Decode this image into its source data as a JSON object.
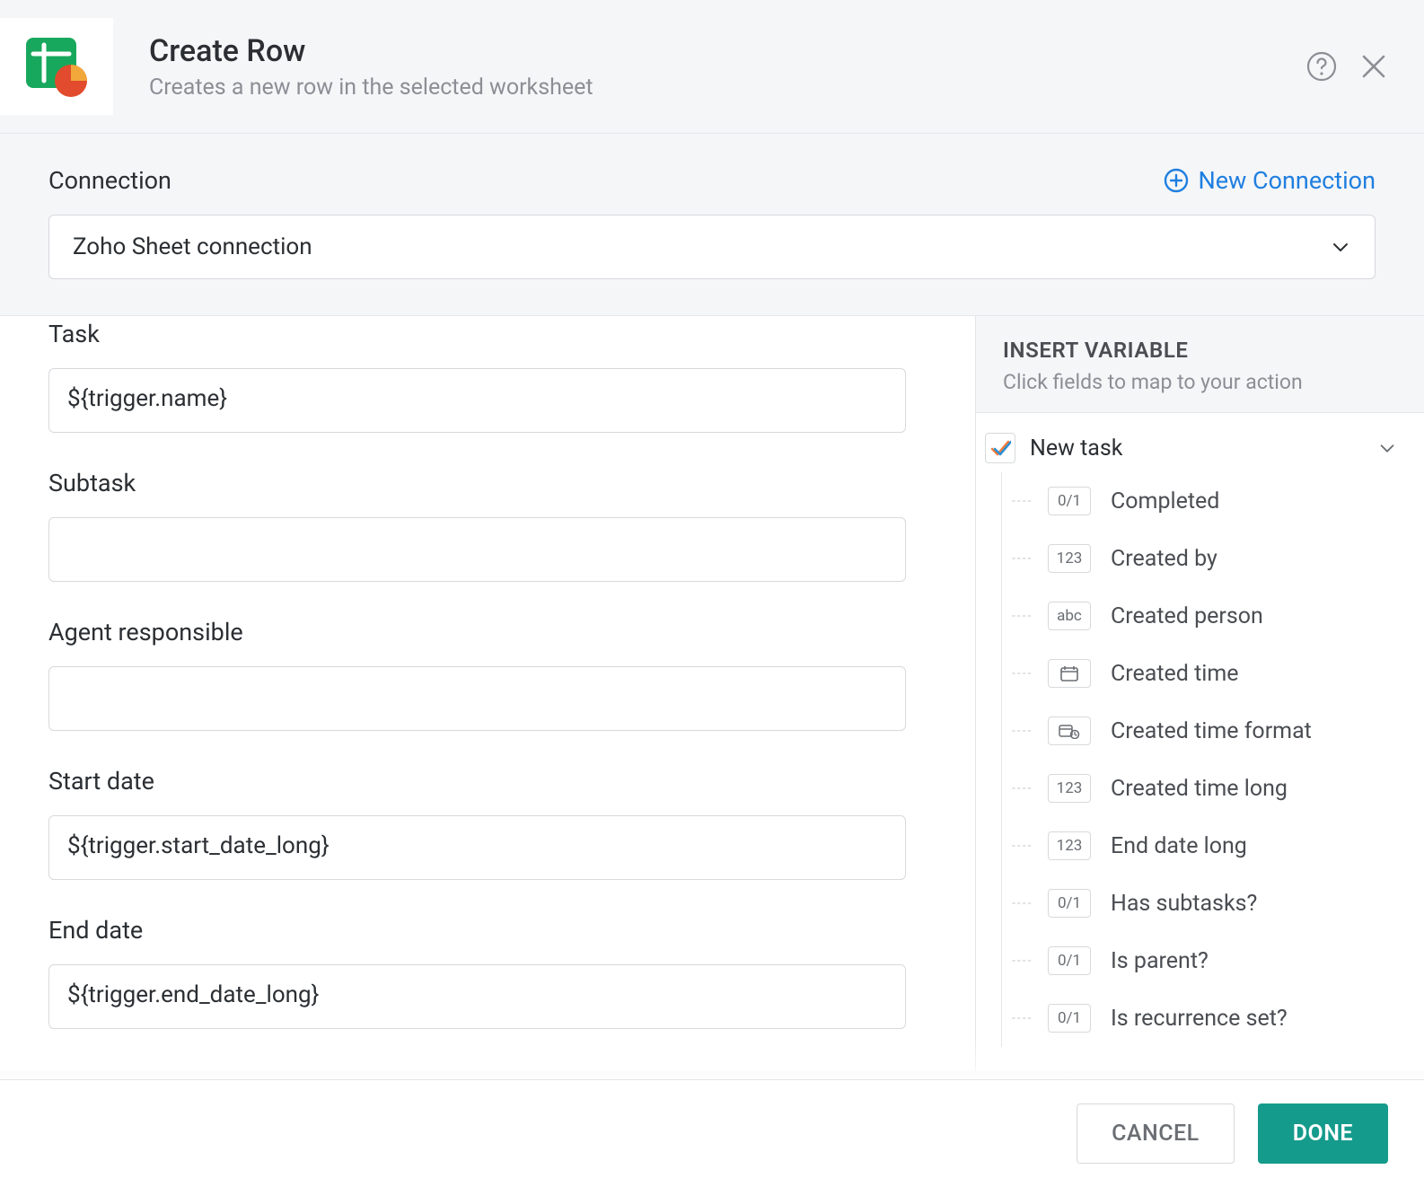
{
  "header": {
    "title": "Create Row",
    "subtitle": "Creates a new row in the selected worksheet"
  },
  "connection": {
    "label": "Connection",
    "new_label": "New Connection",
    "selected": "Zoho Sheet connection"
  },
  "fields": [
    {
      "label": "Task",
      "value": "${trigger.name}"
    },
    {
      "label": "Subtask",
      "value": ""
    },
    {
      "label": "Agent responsible",
      "value": ""
    },
    {
      "label": "Start date",
      "value": "${trigger.start_date_long}"
    },
    {
      "label": "End date",
      "value": "${trigger.end_date_long}"
    }
  ],
  "variables": {
    "title": "INSERT VARIABLE",
    "subtitle": "Click fields to map to your action",
    "root_label": "New task",
    "items": [
      {
        "type": "0/1",
        "label": "Completed"
      },
      {
        "type": "123",
        "label": "Created by"
      },
      {
        "type": "abc",
        "label": "Created person"
      },
      {
        "type": "date",
        "label": "Created time"
      },
      {
        "type": "datef",
        "label": "Created time format"
      },
      {
        "type": "123",
        "label": "Created time long"
      },
      {
        "type": "123",
        "label": "End date long"
      },
      {
        "type": "0/1",
        "label": "Has subtasks?"
      },
      {
        "type": "0/1",
        "label": "Is parent?"
      },
      {
        "type": "0/1",
        "label": "Is recurrence set?"
      }
    ]
  },
  "footer": {
    "cancel": "CANCEL",
    "done": "DONE"
  },
  "colors": {
    "accent_teal": "#159b8c",
    "link_blue": "#1f7fe0",
    "border": "#d7d9dc",
    "muted_text": "#8b8f95",
    "bg_panel": "#f5f6f8"
  }
}
